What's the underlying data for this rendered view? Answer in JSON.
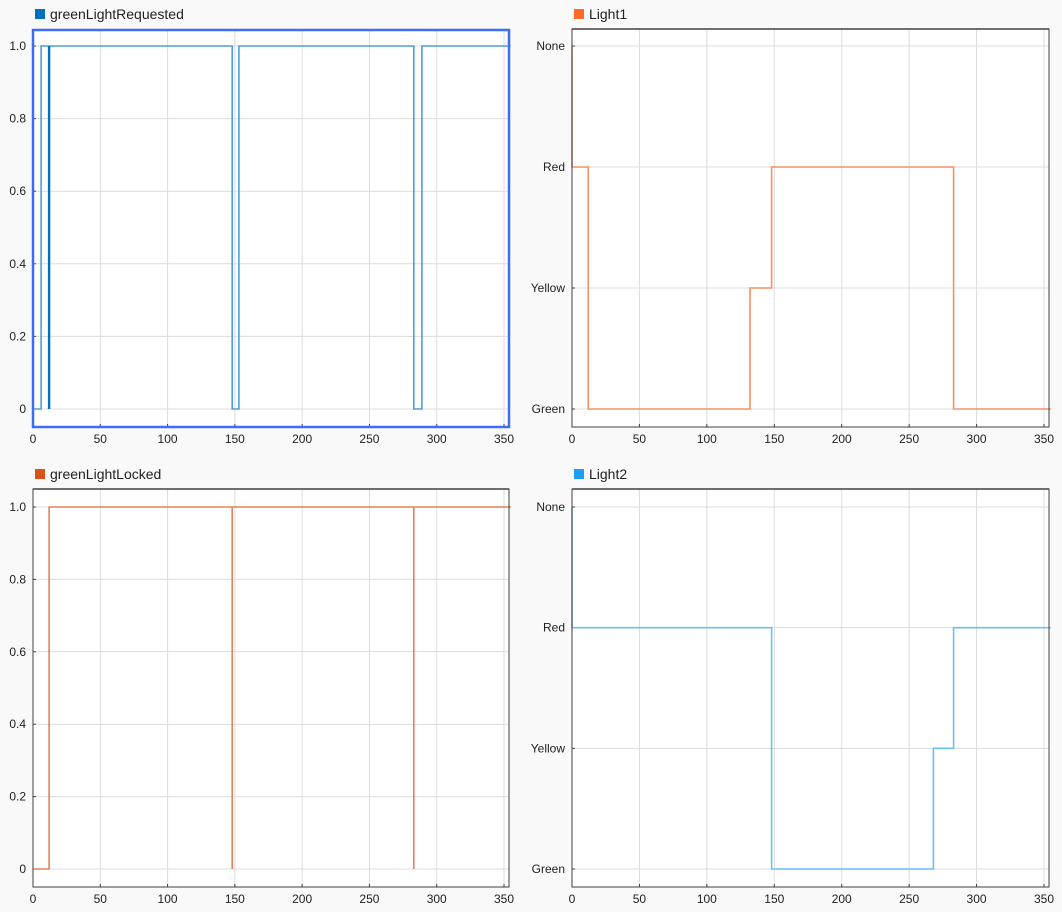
{
  "chart_data": [
    {
      "type": "line",
      "title": "greenLightRequested",
      "legend": [
        "greenLightRequested"
      ],
      "color": "#0072bd",
      "selected": true,
      "xlabel": "",
      "ylabel": "",
      "xlim": [
        0,
        355
      ],
      "ylim": [
        -0.05,
        1.05
      ],
      "xticks": [
        0,
        50,
        100,
        150,
        200,
        250,
        300,
        350
      ],
      "yticks": [
        0,
        0.2,
        0.4,
        0.6,
        0.8,
        1.0
      ],
      "ytick_labels": [
        "0",
        "0.2",
        "0.4",
        "0.6",
        "0.8",
        "1.0"
      ],
      "grid": true,
      "step": true,
      "series": [
        {
          "name": "greenLightRequested",
          "x": [
            0,
            6,
            6,
            148,
            148,
            153,
            153,
            283,
            283,
            289,
            289,
            355
          ],
          "y": [
            0,
            0,
            1,
            1,
            0,
            0,
            1,
            1,
            0,
            0,
            1,
            1
          ]
        },
        {
          "name": "greenLightRequested (overlay)",
          "x": [
            12,
            12
          ],
          "y": [
            0,
            1
          ]
        }
      ]
    },
    {
      "type": "line",
      "title": "Light1",
      "legend": [
        "Light1"
      ],
      "color": "#ff6929",
      "xlabel": "",
      "ylabel": "",
      "xlim": [
        0,
        355
      ],
      "yticks": [
        0,
        1,
        2,
        3
      ],
      "ytick_labels": [
        "Green",
        "Yellow",
        "Red",
        "None"
      ],
      "grid": true,
      "step": true,
      "series": [
        {
          "name": "Light1",
          "x": [
            0,
            0,
            12,
            12,
            132,
            132,
            148,
            148,
            283,
            283,
            355
          ],
          "y": [
            3,
            2,
            2,
            0,
            0,
            1,
            1,
            2,
            2,
            0,
            0
          ]
        }
      ]
    },
    {
      "type": "line",
      "title": "greenLightLocked",
      "legend": [
        "greenLightLocked"
      ],
      "color": "#d95319",
      "xlabel": "",
      "ylabel": "",
      "xlim": [
        0,
        355
      ],
      "ylim": [
        -0.05,
        1.05
      ],
      "xticks": [
        0,
        50,
        100,
        150,
        200,
        250,
        300,
        350
      ],
      "yticks": [
        0,
        0.2,
        0.4,
        0.6,
        0.8,
        1.0
      ],
      "ytick_labels": [
        "0",
        "0.2",
        "0.4",
        "0.6",
        "0.8",
        "1.0"
      ],
      "grid": true,
      "step": true,
      "series": [
        {
          "name": "greenLightLocked",
          "x": [
            0,
            12,
            12,
            148,
            148,
            148,
            283,
            283,
            283,
            355
          ],
          "y": [
            0,
            0,
            1,
            1,
            0,
            1,
            1,
            0,
            1,
            1
          ]
        }
      ]
    },
    {
      "type": "line",
      "title": "Light2",
      "legend": [
        "Light2"
      ],
      "color": "#1a9ff5",
      "xlabel": "",
      "ylabel": "",
      "xlim": [
        0,
        355
      ],
      "yticks": [
        0,
        1,
        2,
        3
      ],
      "ytick_labels": [
        "Green",
        "Yellow",
        "Red",
        "None"
      ],
      "grid": true,
      "step": true,
      "series": [
        {
          "name": "Light2",
          "x": [
            0,
            0,
            148,
            148,
            268,
            268,
            283,
            283,
            355
          ],
          "y": [
            3,
            2,
            2,
            0,
            0,
            1,
            1,
            2,
            2
          ]
        }
      ]
    }
  ],
  "panels": [
    {
      "legend": "greenLightRequested",
      "swatch": "#0072bd",
      "line": "#4d9fd6",
      "line2": "#0072bd",
      "border": "#3e6cf3"
    },
    {
      "legend": "Light1",
      "swatch": "#ff6929",
      "line": "#f79063",
      "border": "#404040"
    },
    {
      "legend": "greenLightLocked",
      "swatch": "#d95319",
      "line": "#e0835a",
      "border": "#404040"
    },
    {
      "legend": "Light2",
      "swatch": "#1a9ff5",
      "line": "#6cbff2",
      "border": "#404040"
    }
  ]
}
